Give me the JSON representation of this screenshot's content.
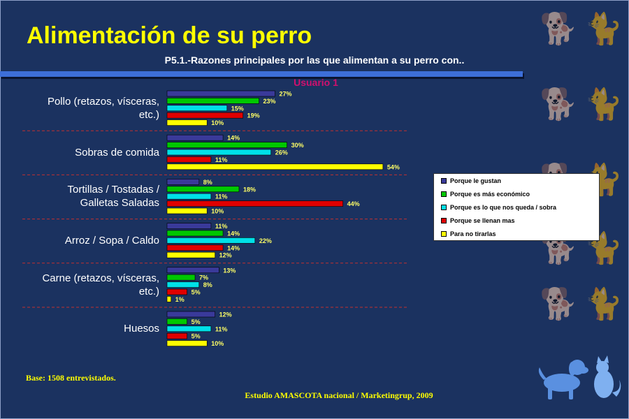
{
  "title": "Alimentación de su perro",
  "subtitle": "P5.1.-Razones principales por las que alimentan a su perro con..",
  "group_label": "Usuario 1",
  "base_note": "Base: 1508 entrevistados.",
  "footer": "Estudio AMASCOTA nacional  / Marketingrup, 2009",
  "colors": {
    "background": "#1b3260",
    "title": "#ffff00",
    "accent_bar": "#3d6fd9",
    "group_label": "#d0106e"
  },
  "icons": [
    "dog-silhouette-icon",
    "cat-silhouette-icon"
  ],
  "chart_data": {
    "type": "bar",
    "orientation": "horizontal",
    "categories": [
      "Pollo (retazos, vísceras, etc.)",
      "Sobras de comida",
      "Tortillas / Tostadas / Galletas Saladas",
      "Arroz / Sopa / Caldo",
      "Carne (retazos, vísceras, etc.)",
      "Huesos"
    ],
    "category_lines": [
      [
        "Pollo (retazos, vísceras,",
        "etc.)"
      ],
      [
        "Sobras de comida"
      ],
      [
        "Tortillas / Tostadas /",
        "Galletas Saladas"
      ],
      [
        "Arroz / Sopa / Caldo"
      ],
      [
        "Carne (retazos, vísceras,",
        "etc.)"
      ],
      [
        "Huesos"
      ]
    ],
    "series": [
      {
        "name": "Porque le gustan",
        "color": "#3a3a9a",
        "values": [
          27,
          14,
          8,
          11,
          13,
          12
        ]
      },
      {
        "name": "Porque es más económico",
        "color": "#00c800",
        "values": [
          23,
          30,
          18,
          14,
          7,
          5
        ]
      },
      {
        "name": "Porque es lo que nos queda / sobra",
        "color": "#00e0e8",
        "values": [
          15,
          26,
          11,
          22,
          8,
          11
        ]
      },
      {
        "name": "Porque se llenan mas",
        "color": "#e00000",
        "values": [
          19,
          11,
          44,
          14,
          5,
          5
        ]
      },
      {
        "name": "Para no tirarlas",
        "color": "#ffff00",
        "values": [
          10,
          54,
          10,
          12,
          1,
          10
        ]
      }
    ],
    "value_suffix": "%",
    "legend_position": "right",
    "grid": false
  }
}
